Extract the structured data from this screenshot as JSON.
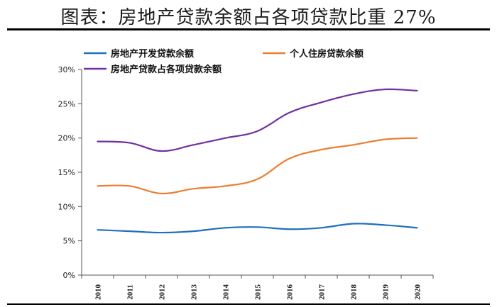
{
  "title": "图表：房地产贷款余额占各项贷款比重 27%",
  "chart_data": {
    "type": "line",
    "x": [
      "2010",
      "2011",
      "2012",
      "2013",
      "2014",
      "2015",
      "2016",
      "2017",
      "2018",
      "2019",
      "2020"
    ],
    "ylim": [
      0,
      30
    ],
    "yticks": [
      "0%",
      "5%",
      "10%",
      "15%",
      "20%",
      "25%",
      "30%"
    ],
    "legend_position": "top",
    "grid": false,
    "series": [
      {
        "name": "房地产开发贷款余额",
        "color": "#1f6fbf",
        "values": [
          6.6,
          6.4,
          6.2,
          6.4,
          6.9,
          7.0,
          6.7,
          6.9,
          7.5,
          7.3,
          6.9
        ]
      },
      {
        "name": "个人住房贷款余额",
        "color": "#ed7d31",
        "values": [
          13.0,
          13.0,
          11.9,
          12.6,
          13.0,
          14.0,
          17.0,
          18.3,
          19.0,
          19.8,
          20.0
        ]
      },
      {
        "name": "房地产贷款占各项贷款余额",
        "color": "#7030a0",
        "values": [
          19.5,
          19.3,
          18.1,
          19.0,
          20.0,
          21.0,
          23.7,
          25.2,
          26.4,
          27.1,
          26.9
        ]
      }
    ]
  }
}
